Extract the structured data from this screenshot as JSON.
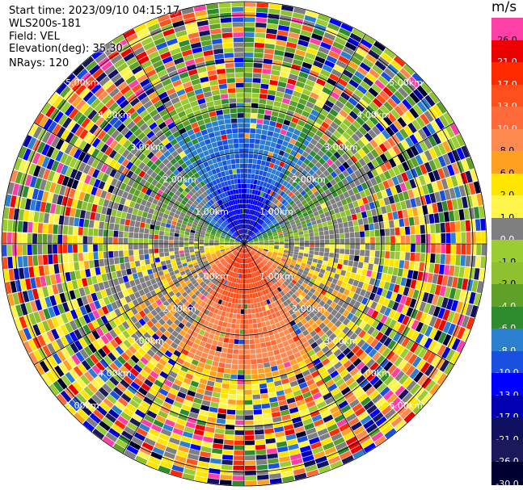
{
  "header": {
    "start_time": "Start time: 2023/09/10 04:15:17",
    "instrument": "WLS200s-181",
    "field": "Field: VEL",
    "elevation": "Elevation(deg): 35.30",
    "nrays": "NRays: 120"
  },
  "colorbar": {
    "unit": "m/s",
    "levels": [
      {
        "label": "26.0",
        "color": "#ff3fa8"
      },
      {
        "label": "21.0",
        "color": "#ee0000"
      },
      {
        "label": "17.0",
        "color": "#ff2a00"
      },
      {
        "label": "13.0",
        "color": "#ff4f1a"
      },
      {
        "label": "10.0",
        "color": "#ff6a3a"
      },
      {
        "label": "8.0",
        "color": "#ff8a50"
      },
      {
        "label": "6.0",
        "color": "#ffa020"
      },
      {
        "label": "2.0",
        "color": "#ffe600"
      },
      {
        "label": "1.0",
        "color": "#fff44a"
      },
      {
        "label": "0.0",
        "color": "#7f7f7f"
      },
      {
        "label": "-1.0",
        "color": "#9acd32"
      },
      {
        "label": "-2.0",
        "color": "#8ec030"
      },
      {
        "label": "-4.0",
        "color": "#5fa128"
      },
      {
        "label": "-6.0",
        "color": "#2e8b2e"
      },
      {
        "label": "-8.0",
        "color": "#2a7fd0"
      },
      {
        "label": "-10.0",
        "color": "#1a50e0"
      },
      {
        "label": "-13.0",
        "color": "#0000ff"
      },
      {
        "label": "-17.0",
        "color": "#0000b0"
      },
      {
        "label": "-21.0",
        "color": "#101060"
      },
      {
        "label": "-26.0",
        "color": "#1a1a5a"
      },
      {
        "label": "-30.0",
        "color": "#000030"
      }
    ]
  },
  "chart_data": {
    "type": "heatmap",
    "projection": "polar (PPI)",
    "field": "VEL",
    "units": "m/s",
    "nrays": 120,
    "range_rings_km": [
      1,
      2,
      3,
      4,
      5
    ],
    "range_ring_labels": [
      "1.00km",
      "2.00km",
      "3.00km",
      "4.00km",
      "5.00km"
    ],
    "color_scale": [
      26.0,
      21.0,
      17.0,
      13.0,
      10.0,
      8.0,
      6.0,
      2.0,
      1.0,
      0.0,
      -1.0,
      -2.0,
      -4.0,
      -6.0,
      -8.0,
      -10.0,
      -13.0,
      -17.0,
      -21.0,
      -26.0,
      -30.0
    ],
    "description_pattern": {
      "north_near": -10.0,
      "north_mid": -4.0,
      "south_near": 13.0,
      "south_mid": 2.0,
      "east_west_near": 0.0
    }
  }
}
